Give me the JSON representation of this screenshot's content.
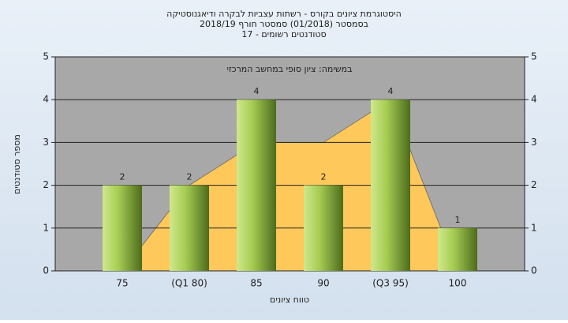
{
  "chart_data": {
    "type": "bar",
    "title": [
      "היסטוגרמת ציונים בקורס - רשתות עצביות לבקרה ודיאגנוסטיקה",
      "בסמסטר (01/2018)  סמסטר חורף 2018/19",
      "סטודנטים רשומים - 17"
    ],
    "subtitle": "במשימה: ציון סופי במחשב המרכזי",
    "x_label": "טווח ציונים",
    "y_label": "מספר סטודנטים",
    "categories": [
      "75",
      "(Q1 80)",
      "85",
      "90",
      "(Q3 95)",
      "100"
    ],
    "series": [
      {
        "color": "#8db33a",
        "values": [
          2,
          2,
          4,
          2,
          4,
          1
        ]
      }
    ],
    "area": {
      "color": "#ffc85a",
      "values": [
        0,
        2,
        3,
        3,
        4,
        0
      ]
    },
    "ylim": [
      0,
      5
    ],
    "yticks": [
      0,
      1,
      2,
      3,
      4,
      5
    ],
    "y2lim": [
      0,
      5
    ],
    "y2ticks": [
      0,
      1,
      2,
      3,
      4,
      5
    ],
    "grid": true
  }
}
